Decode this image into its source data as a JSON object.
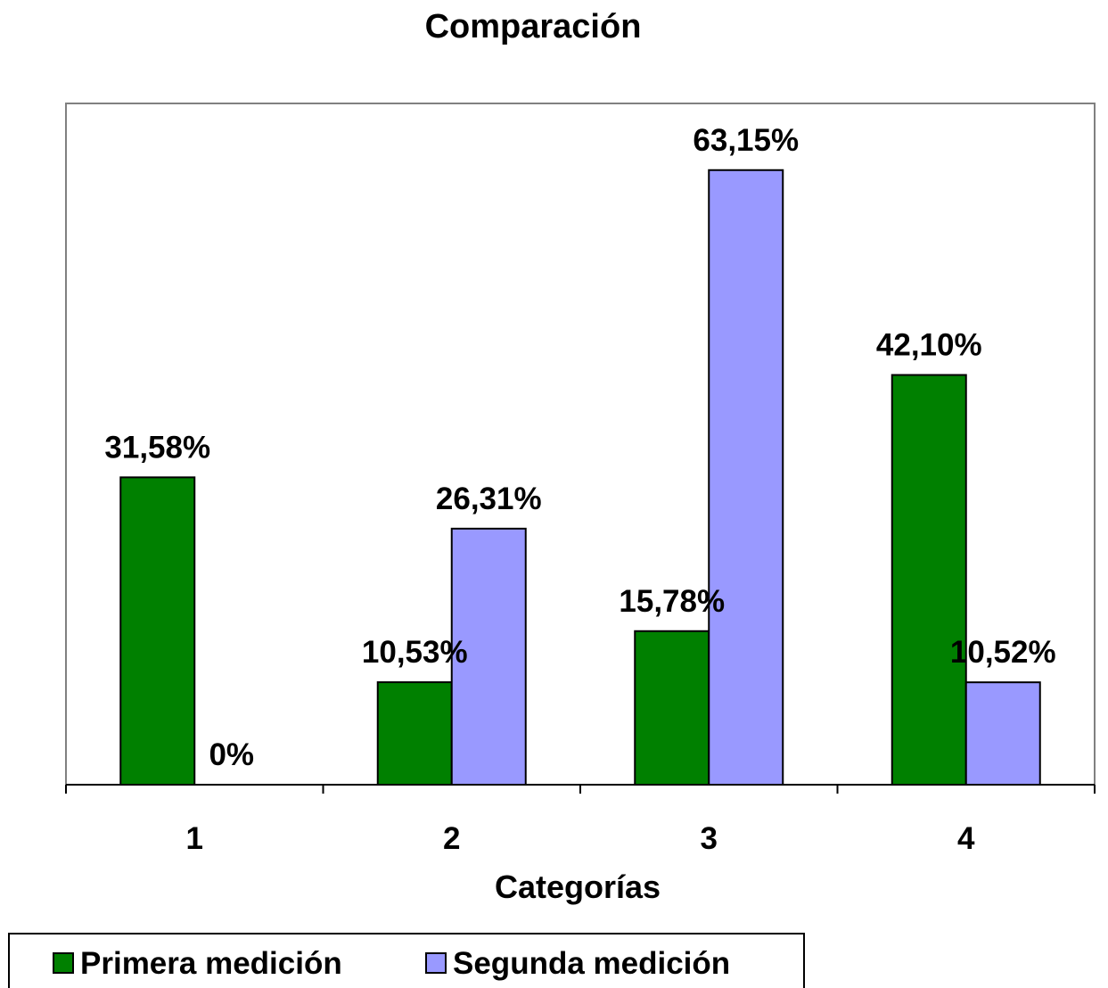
{
  "chart_data": {
    "type": "bar",
    "title": "Comparación",
    "xlabel": "Categorías",
    "ylabel": "",
    "categories": [
      "1",
      "2",
      "3",
      "4"
    ],
    "ylim": [
      0,
      70
    ],
    "grid": false,
    "legend_position": "bottom-left",
    "series": [
      {
        "name": "Primera medición",
        "color": "#008000",
        "values": [
          31.58,
          10.53,
          15.78,
          42.1
        ],
        "labels": [
          "31,58%",
          "10,53%",
          "15,78%",
          "42,10%"
        ]
      },
      {
        "name": "Segunda medición",
        "color": "#9999ff",
        "values": [
          0,
          26.31,
          63.15,
          10.52
        ],
        "labels": [
          "0%",
          "26,31%",
          "63,15%",
          "10,52%"
        ]
      }
    ]
  }
}
